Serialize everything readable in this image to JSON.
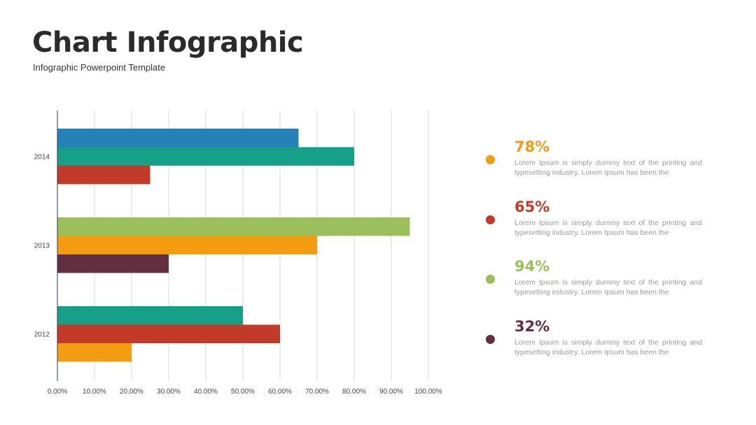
{
  "header": {
    "title": "Chart Infographic",
    "subtitle": "Infographic Powerpoint Template"
  },
  "chart_data": {
    "type": "bar",
    "orientation": "horizontal",
    "xlim": [
      0,
      100
    ],
    "x_ticks": [
      "0.00%",
      "10.00%",
      "20.00%",
      "30.00%",
      "40.00%",
      "50.00%",
      "60.00%",
      "70.00%",
      "80.00%",
      "90.00%",
      "100.00%"
    ],
    "grid": true,
    "categories": [
      "2014",
      "2013",
      "2012"
    ],
    "bars": [
      [
        {
          "value": 65,
          "color": "#2681b8"
        },
        {
          "value": 80,
          "color": "#17a088"
        },
        {
          "value": 25,
          "color": "#c23b29"
        }
      ],
      [
        {
          "value": 95,
          "color": "#9bbf5a"
        },
        {
          "value": 70,
          "color": "#f39c12"
        },
        {
          "value": 30,
          "color": "#642e42"
        }
      ],
      [
        {
          "value": 50,
          "color": "#17a088"
        },
        {
          "value": 60,
          "color": "#c23b29"
        },
        {
          "value": 20,
          "color": "#f39c12"
        }
      ]
    ]
  },
  "legend": {
    "items": [
      {
        "value": "78%",
        "color": "#f39c12",
        "text": "Lorem Ipsum is simply dummy text of the printing and typesetting industry. Lorem Ipsum has been the"
      },
      {
        "value": "65%",
        "color": "#c23b29",
        "text": "Lorem Ipsum is simply dummy text of the printing and typesetting industry. Lorem Ipsum has been the"
      },
      {
        "value": "94%",
        "color": "#9bbf5a",
        "text": "Lorem Ipsum is simply dummy text of the printing and typesetting industry. Lorem Ipsum has been the"
      },
      {
        "value": "32%",
        "color": "#642e42",
        "text": "Lorem Ipsum is simply dummy text of the printing and typesetting industry. Lorem Ipsum has been the"
      }
    ]
  }
}
